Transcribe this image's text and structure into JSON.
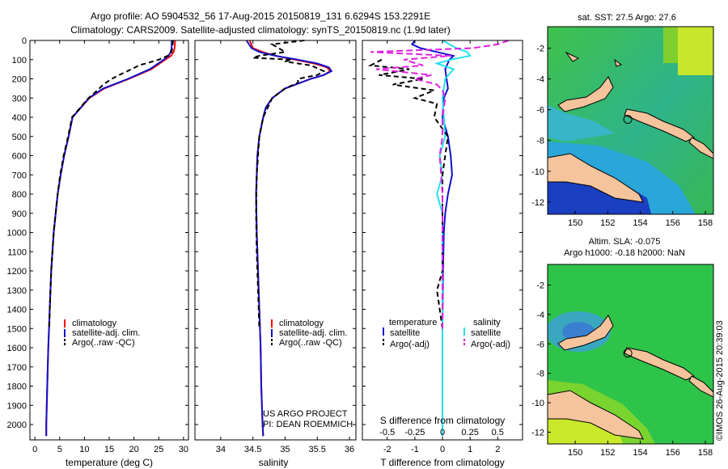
{
  "header": {
    "line1": "Argo profile: AO 5904532_56 17-Aug-2015 20150819_131 6.6294S 153.2291E",
    "line2": "Climatology: CARS2009. Satellite-adjusted climatology: synTS_20150819.nc (1.9d later)"
  },
  "colors": {
    "red": "#ff0000",
    "blue": "#1010cc",
    "black": "#000000",
    "cyan": "#22e0f0",
    "magenta": "#e020e0",
    "land": "#f5c49c"
  },
  "chart_data": [
    {
      "id": "temperature",
      "type": "line",
      "xlabel": "temperature (deg C)",
      "ylabel": "",
      "xlim": [
        -1,
        31
      ],
      "ylim": [
        2080,
        0
      ],
      "xticks": [
        0,
        5,
        10,
        15,
        20,
        25,
        30
      ],
      "xtick_labels": [
        "0",
        "5",
        "10",
        "15",
        "20",
        "25",
        "30"
      ],
      "yticks": [
        0,
        100,
        200,
        300,
        400,
        500,
        600,
        700,
        800,
        900,
        1000,
        1100,
        1200,
        1300,
        1400,
        1500,
        1600,
        1700,
        1800,
        1900,
        2000
      ],
      "ytick_labels": [
        "0",
        "100",
        "200",
        "300",
        "400",
        "500",
        "600",
        "700",
        "800",
        "900",
        "1000",
        "1100",
        "1200",
        "1300",
        "1400",
        "1500",
        "1600",
        "1700",
        "1800",
        "1900",
        "2000"
      ],
      "legend": [
        "climatology",
        "satellite-adj. clim.",
        "Argo(..raw -QC)"
      ],
      "series": [
        {
          "name": "climatology",
          "color": "red",
          "dash": "",
          "depth": [
            0,
            40,
            60,
            80,
            100,
            150,
            200,
            250,
            300,
            400,
            500,
            600,
            700,
            800,
            900,
            1000,
            1200,
            1400,
            1600,
            1800,
            2000,
            2060
          ],
          "values": [
            28.3,
            28.2,
            28.0,
            27.5,
            26.3,
            23.5,
            19.0,
            14.0,
            11.0,
            7.6,
            6.8,
            5.9,
            5.2,
            4.6,
            4.2,
            3.8,
            3.3,
            3.0,
            2.7,
            2.5,
            2.3,
            2.3
          ]
        },
        {
          "name": "satellite-adj. clim.",
          "color": "blue",
          "dash": "",
          "depth": [
            0,
            40,
            60,
            80,
            100,
            150,
            200,
            250,
            300,
            400,
            500,
            600,
            700,
            800,
            900,
            1000,
            1200,
            1400,
            1600,
            1800,
            2000,
            2060
          ],
          "values": [
            27.6,
            27.6,
            27.4,
            27.0,
            26.0,
            23.2,
            18.8,
            13.8,
            10.9,
            7.6,
            6.8,
            5.9,
            5.2,
            4.6,
            4.2,
            3.8,
            3.3,
            3.0,
            2.7,
            2.5,
            2.3,
            2.3
          ]
        },
        {
          "name": "Argo(..raw -QC)",
          "color": "black",
          "dash": "6,4",
          "depth": [
            0,
            60,
            80,
            100,
            130,
            150,
            180,
            200,
            230,
            260,
            300,
            400,
            500,
            600,
            700,
            800,
            900,
            1000,
            1200,
            1400,
            1500
          ],
          "values": [
            27.9,
            27.6,
            26.8,
            25.0,
            21.0,
            19.5,
            17.0,
            15.5,
            13.8,
            12.6,
            10.8,
            7.5,
            6.7,
            5.8,
            5.1,
            4.6,
            4.2,
            3.8,
            3.3,
            3.0,
            2.9
          ]
        }
      ]
    },
    {
      "id": "salinity",
      "type": "line",
      "xlabel": "salinity",
      "ylabel": "",
      "xlim": [
        33.6,
        36.1
      ],
      "ylim": [
        2080,
        0
      ],
      "xticks": [
        34,
        34.5,
        35,
        35.5,
        36
      ],
      "xtick_labels": [
        "34",
        "34.5",
        "35",
        "35.5",
        "36"
      ],
      "legend": [
        "climatology",
        "satellite-adj. clim.",
        "Argo(..raw -QC)"
      ],
      "annotations": [
        "US ARGO PROJECT",
        "PI: DEAN ROEMMICH"
      ],
      "series": [
        {
          "name": "climatology",
          "color": "red",
          "dash": "",
          "depth": [
            0,
            40,
            60,
            80,
            100,
            120,
            140,
            160,
            180,
            200,
            250,
            300,
            350,
            400,
            500,
            600,
            800,
            1000,
            1200,
            1400,
            1600,
            1800,
            2000,
            2060
          ],
          "values": [
            34.45,
            34.5,
            34.65,
            34.85,
            35.15,
            35.45,
            35.65,
            35.7,
            35.6,
            35.4,
            35.0,
            34.8,
            34.7,
            34.66,
            34.6,
            34.57,
            34.55,
            34.56,
            34.58,
            34.6,
            34.62,
            34.63,
            34.65,
            34.66
          ]
        },
        {
          "name": "satellite-adj. clim.",
          "color": "blue",
          "dash": "",
          "depth": [
            0,
            40,
            60,
            80,
            100,
            120,
            140,
            160,
            180,
            200,
            250,
            300,
            350,
            400,
            500,
            600,
            800,
            1000,
            1200,
            1400,
            1600,
            1800,
            2000,
            2060
          ],
          "values": [
            34.4,
            34.48,
            34.6,
            34.85,
            35.2,
            35.5,
            35.68,
            35.72,
            35.6,
            35.4,
            35.0,
            34.8,
            34.7,
            34.66,
            34.6,
            34.57,
            34.55,
            34.56,
            34.58,
            34.6,
            34.62,
            34.63,
            34.65,
            34.66
          ]
        },
        {
          "name": "Argo(..raw -QC)",
          "color": "black",
          "dash": "6,4",
          "depth": [
            0,
            20,
            40,
            60,
            80,
            90,
            100,
            110,
            130,
            160,
            180,
            200,
            220,
            250,
            300,
            400,
            500,
            700,
            900,
            1100,
            1300,
            1500
          ],
          "values": [
            35.3,
            34.8,
            34.9,
            35.0,
            34.6,
            34.5,
            35.1,
            35.0,
            35.4,
            35.6,
            35.5,
            35.2,
            35.2,
            35.0,
            34.8,
            34.66,
            34.6,
            34.56,
            34.55,
            34.56,
            34.58,
            34.6
          ]
        }
      ]
    },
    {
      "id": "difference",
      "type": "line",
      "xlabel": "T difference from climatology",
      "secondary_xlabel": "S difference from climatology",
      "xlim": [
        -2.9,
        2.9
      ],
      "ylim": [
        2080,
        0
      ],
      "xticks": [
        -2,
        -1,
        0,
        1,
        2
      ],
      "xtick_labels": [
        "-2",
        "-1",
        "0",
        "1",
        "2"
      ],
      "top_xticks": [
        -0.5,
        -0.25,
        0,
        0.25,
        0.5
      ],
      "top_xtick_labels": [
        "-0.5",
        "-0.25",
        "0",
        "0.25",
        "0.5"
      ],
      "legend": {
        "temperature": "temperature",
        "salinity": "salinity",
        "sat": "satellite",
        "argo": "Argo(-adj)"
      },
      "series": [
        {
          "name": "T satellite",
          "color": "blue",
          "dash": "",
          "depth": [
            0,
            20,
            40,
            60,
            80,
            100,
            150,
            200,
            250,
            300,
            400,
            500,
            600,
            700,
            800,
            900,
            1000,
            1200,
            1500,
            1800,
            2000,
            2060
          ],
          "values": [
            -1.0,
            -1.1,
            -0.8,
            -0.2,
            0.4,
            0.25,
            0.1,
            0.15,
            0.2,
            0.05,
            0.0,
            0.2,
            0.3,
            0.35,
            0.2,
            0.1,
            0.05,
            0.02,
            0.0,
            0.0,
            0.0,
            0.0
          ]
        },
        {
          "name": "S satellite",
          "color": "cyan",
          "dash": "",
          "depth": [
            0,
            40,
            60,
            80,
            100,
            120,
            150,
            200,
            300,
            500,
            600,
            700,
            800,
            900,
            1000,
            1200,
            1500,
            1800,
            2000,
            2060
          ],
          "values": [
            0.0,
            0.5,
            0.9,
            1.0,
            0.3,
            -0.2,
            0.4,
            0.1,
            0.0,
            0.1,
            -0.1,
            0.0,
            -0.2,
            0.0,
            0.0,
            0.0,
            0.0,
            0.0,
            0.0,
            0.0
          ]
        },
        {
          "name": "T Argo(-adj)",
          "color": "black",
          "dash": "6,4",
          "depth": [
            100,
            130,
            150,
            180,
            200,
            230,
            260,
            300,
            330,
            400,
            500,
            600,
            700,
            900,
            1200,
            1300,
            1400,
            1500
          ],
          "values": [
            -2.2,
            -2.6,
            -1.2,
            -2.3,
            -0.7,
            -1.8,
            -0.3,
            -1.0,
            -0.2,
            -0.3,
            0.2,
            0.1,
            0.0,
            0.0,
            0.0,
            -0.2,
            -0.1,
            0.0
          ]
        },
        {
          "name": "S Argo(-adj)",
          "color": "magenta",
          "dash": "8,4",
          "depth": [
            0,
            20,
            40,
            60,
            80,
            100,
            130,
            150,
            180,
            200,
            230,
            260,
            300,
            400,
            500,
            600,
            800,
            1000,
            1200,
            1500
          ],
          "values": [
            2.4,
            2.0,
            1.1,
            -2.6,
            0.3,
            -1.4,
            -0.7,
            -2.4,
            -0.4,
            -1.0,
            -0.2,
            0.0,
            0.1,
            0.0,
            0.0,
            -0.1,
            0.0,
            0.0,
            0.0,
            0.0
          ]
        }
      ]
    },
    {
      "id": "sst_map",
      "type": "heatmap",
      "title": "sat. SST: 27.5 Argo: 27.6",
      "xlim": [
        148.3,
        158.5
      ],
      "ylim": [
        -12.8,
        -0.6
      ],
      "xticks": [
        150,
        152,
        154,
        156,
        158
      ],
      "xtick_labels": [
        "150",
        "152",
        "154",
        "156",
        "158"
      ],
      "yticks": [
        -2,
        -4,
        -6,
        -8,
        -10,
        -12
      ],
      "ytick_labels": [
        "-2",
        "-4",
        "-6",
        "-8",
        "-10",
        "-12"
      ],
      "float_position": {
        "lon": 153.23,
        "lat": -6.63
      }
    },
    {
      "id": "sla_map",
      "type": "heatmap",
      "title1": "Altim. SLA: -0.075",
      "title2": "Argo h1000: -0.18 h2000: NaN",
      "xlim": [
        148.3,
        158.5
      ],
      "ylim": [
        -12.8,
        -0.6
      ],
      "xticks": [
        150,
        152,
        154,
        156,
        158
      ],
      "xtick_labels": [
        "150",
        "152",
        "154",
        "156",
        "158"
      ],
      "yticks": [
        -2,
        -4,
        -6,
        -8,
        -10,
        -12
      ],
      "ytick_labels": [
        "-2",
        "-4",
        "-6",
        "-8",
        "-10",
        "-12"
      ],
      "float_position": {
        "lon": 153.23,
        "lat": -6.63
      }
    }
  ],
  "footer": {
    "stamp": "©IMOS 26-Aug-2015 20:39:03"
  }
}
